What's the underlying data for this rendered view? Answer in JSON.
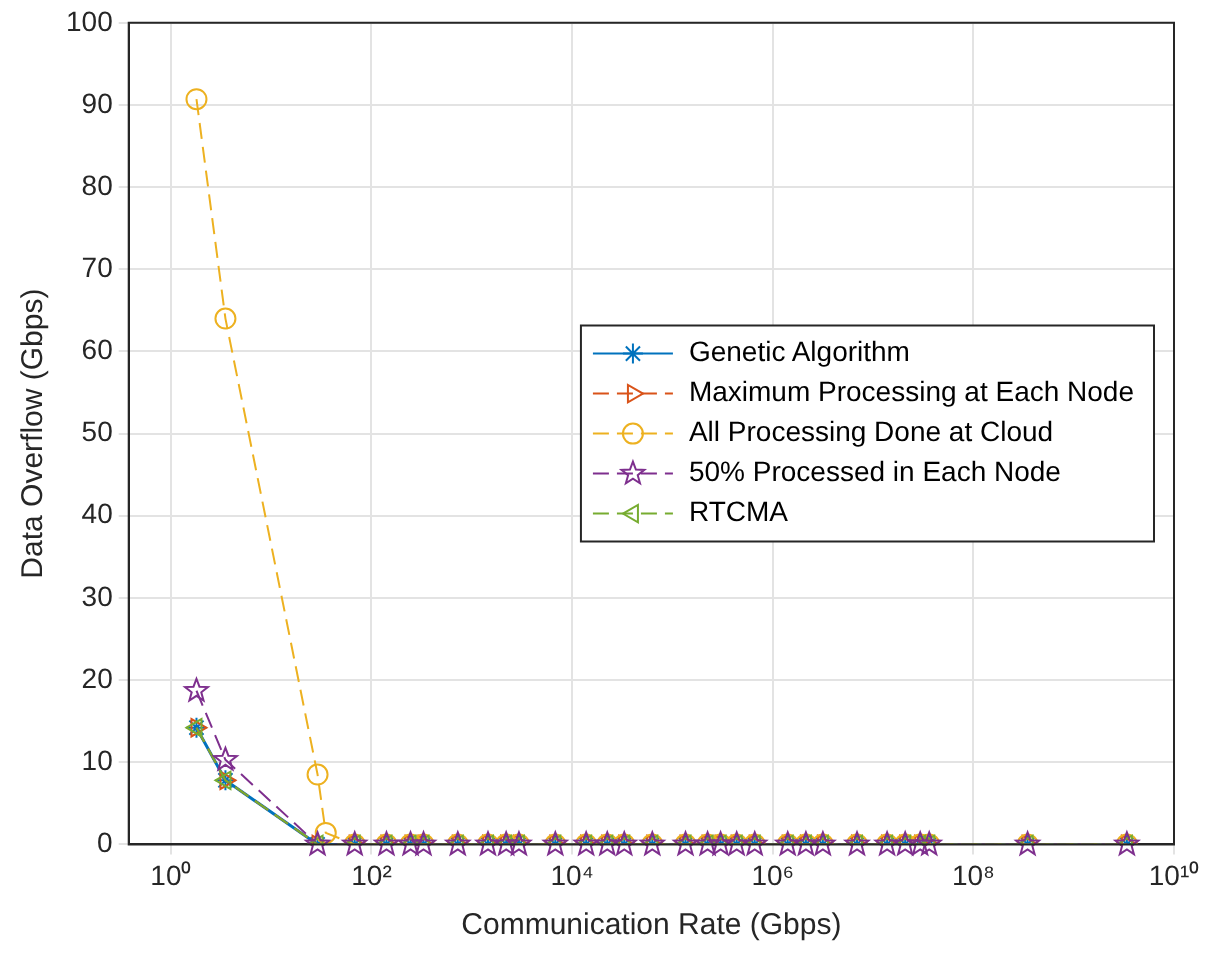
{
  "chart_data": {
    "type": "line",
    "xlabel": "Communication Rate (Gbps)",
    "ylabel": "Data Overflow (Gbps)",
    "log": "x",
    "grid": true,
    "legend": "right",
    "xlim": [
      0.38,
      10000000000
    ],
    "xticks": [
      {
        "value": 1,
        "label": "10⁰"
      },
      {
        "value": 100,
        "label": "10²"
      },
      {
        "value": 10000,
        "label": "10⁴"
      },
      {
        "value": 1000000,
        "label": "10⁶"
      },
      {
        "value": 100000000,
        "label": "10⁸"
      },
      {
        "value": 10000000000,
        "label": "10¹⁰"
      }
    ],
    "ylim": [
      0,
      100
    ],
    "yticks": [
      0,
      10,
      20,
      30,
      40,
      50,
      60,
      70,
      80,
      90,
      100
    ],
    "series": [
      {
        "name": "Genetic Algorithm",
        "color": "#0072bd",
        "marker": "cross",
        "line_style": "solid",
        "x": [
          1.8,
          3.5,
          29,
          68,
          141,
          245,
          330,
          725,
          1450,
          2200,
          2950,
          6800,
          13800,
          22400,
          33100,
          63000,
          135000,
          224000,
          302000,
          437000,
          661000,
          1410000,
          2140000,
          3160000,
          6920000,
          13800000,
          20900000,
          29500000,
          36300000,
          347000000,
          3390000000
        ],
        "values": [
          14.2,
          7.8,
          0,
          0,
          0,
          0,
          0,
          0,
          0,
          0,
          0,
          0,
          0,
          0,
          0,
          0,
          0,
          0,
          0,
          0,
          0,
          0,
          0,
          0,
          0,
          0,
          0,
          0,
          0,
          0,
          0
        ]
      },
      {
        "name": "Maximum Processing at Each Node",
        "color": "#d95319",
        "marker": "triangle",
        "line_style": "dashed",
        "x": [
          1.8,
          3.5,
          29,
          68,
          141,
          245,
          330,
          725,
          1450,
          2200,
          2950,
          6800,
          13800,
          22400,
          33100,
          63000,
          135000,
          224000,
          302000,
          437000,
          661000,
          1410000,
          2140000,
          3160000,
          6920000,
          13800000,
          20900000,
          29500000,
          36300000,
          347000000,
          3390000000
        ],
        "values": [
          14.2,
          7.8,
          0,
          0,
          0,
          0,
          0,
          0,
          0,
          0,
          0,
          0,
          0,
          0,
          0,
          0,
          0,
          0,
          0,
          0,
          0,
          0,
          0,
          0,
          0,
          0,
          0,
          0,
          0,
          0,
          0
        ]
      },
      {
        "name": "All Processing Done at Cloud",
        "color": "#edb120",
        "marker": "circle",
        "line_style": "dashed",
        "x": [
          1.8,
          3.5,
          29,
          35,
          68,
          141,
          245,
          330,
          725,
          1450,
          2200,
          2950,
          6800,
          13800,
          22400,
          33100,
          63000,
          135000,
          224000,
          302000,
          437000,
          661000,
          1410000,
          2140000,
          3160000,
          6920000,
          13800000,
          20900000,
          29500000,
          36300000,
          347000000,
          3390000000
        ],
        "values": [
          90.7,
          64,
          8.5,
          1.4,
          0,
          0,
          0,
          0,
          0,
          0,
          0,
          0,
          0,
          0,
          0,
          0,
          0,
          0,
          0,
          0,
          0,
          0,
          0,
          0,
          0,
          0,
          0,
          0,
          0,
          0,
          0,
          0
        ]
      },
      {
        "name": "50% Processed in Each Node",
        "color": "#7e2f8e",
        "marker": "star",
        "line_style": "dashed",
        "x": [
          1.8,
          3.5,
          29,
          68,
          141,
          245,
          330,
          725,
          1450,
          2200,
          2950,
          6800,
          13800,
          22400,
          33100,
          63000,
          135000,
          224000,
          302000,
          437000,
          661000,
          1410000,
          2140000,
          3160000,
          6920000,
          13800000,
          20900000,
          29500000,
          36300000,
          347000000,
          3390000000
        ],
        "values": [
          18.7,
          10.3,
          0,
          0,
          0,
          0,
          0,
          0,
          0,
          0,
          0,
          0,
          0,
          0,
          0,
          0,
          0,
          0,
          0,
          0,
          0,
          0,
          0,
          0,
          0,
          0,
          0,
          0,
          0,
          0,
          0
        ]
      },
      {
        "name": "RTCMA",
        "color": "#77ac30",
        "marker": "triangle",
        "line_style": "dashed",
        "x": [
          1.8,
          3.5,
          29,
          68,
          141,
          245,
          330,
          725,
          1450,
          2200,
          2950,
          6800,
          13800,
          22400,
          33100,
          63000,
          135000,
          224000,
          302000,
          437000,
          661000,
          1410000,
          2140000,
          3160000,
          6920000,
          13800000,
          20900000,
          29500000,
          36300000,
          347000000,
          3390000000
        ],
        "values": [
          14.2,
          7.8,
          0,
          0,
          0,
          0,
          0,
          0,
          0,
          0,
          0,
          0,
          0,
          0,
          0,
          0,
          0,
          0,
          0,
          0,
          0,
          0,
          0,
          0,
          0,
          0,
          0,
          0,
          0,
          0,
          0
        ]
      }
    ]
  }
}
